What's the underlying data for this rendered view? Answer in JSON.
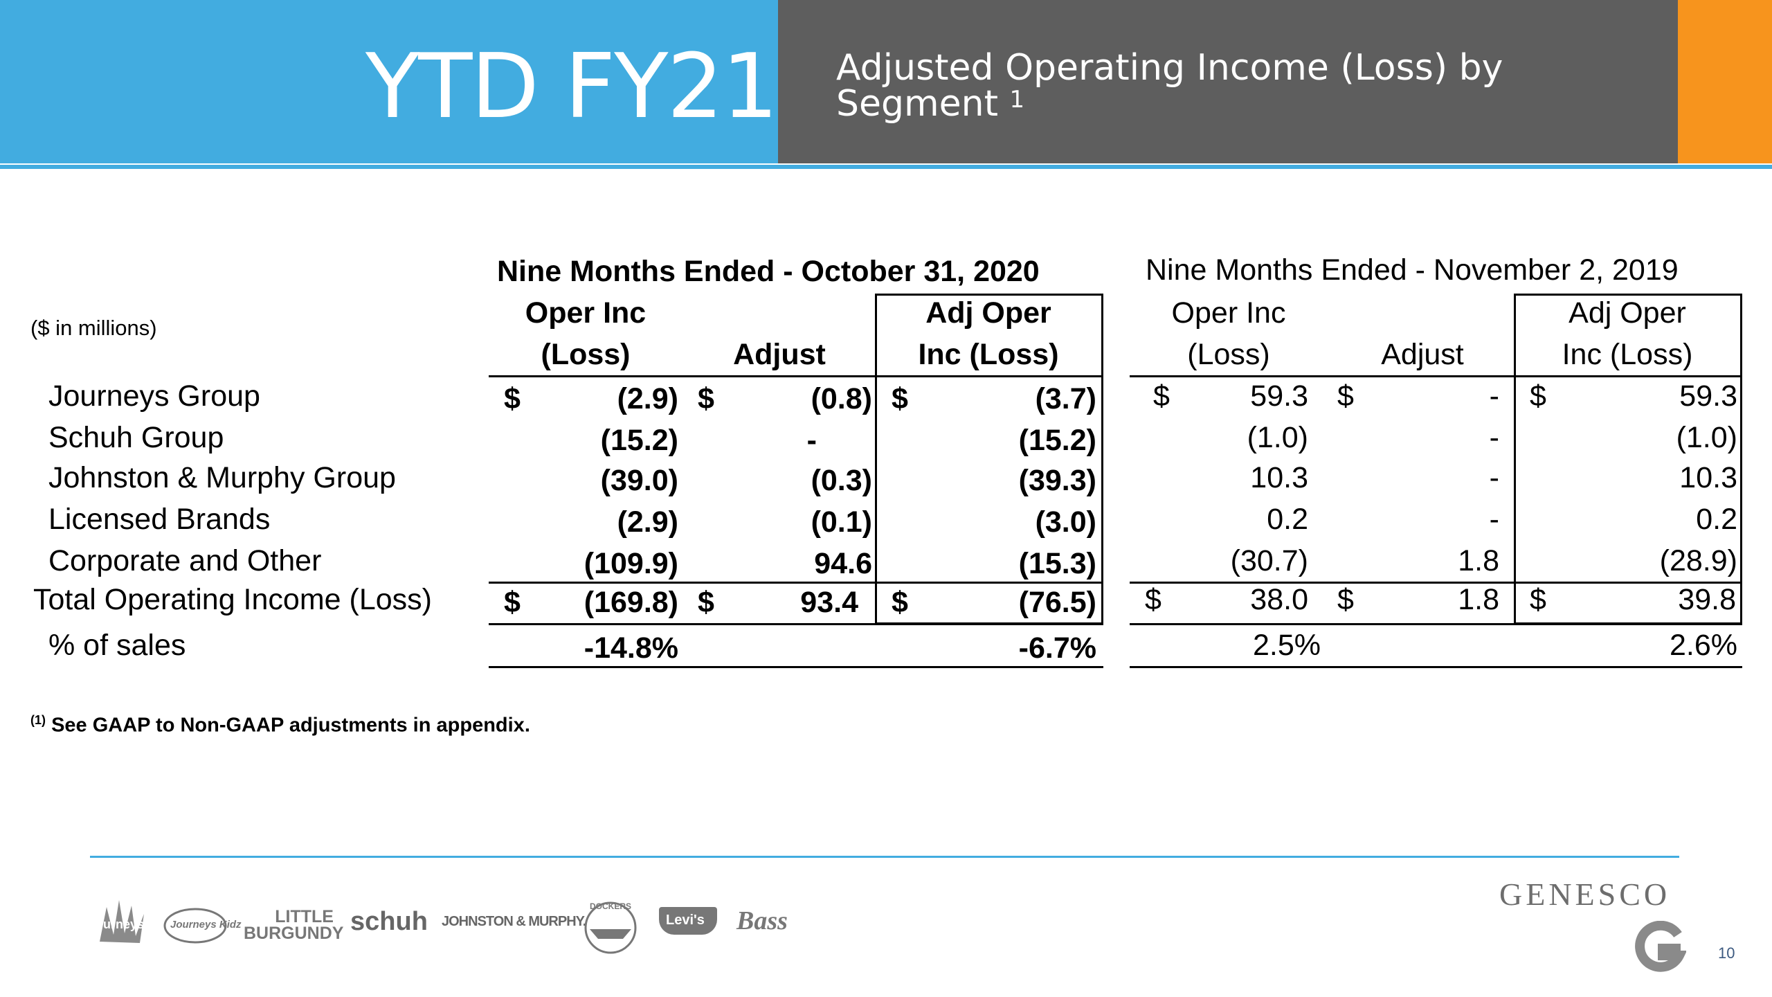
{
  "header": {
    "title": "YTD FY21",
    "subtitle": "Adjusted Operating Income (Loss) by Segment",
    "subtitle_note": "1"
  },
  "units_label": "($ in millions)",
  "periods": {
    "current": "Nine Months Ended - October 31, 2020",
    "prior": "Nine Months Ended - November 2, 2019"
  },
  "columns": {
    "oper_inc_line1": "Oper Inc",
    "oper_inc_line2": "(Loss)",
    "adjust": "Adjust",
    "adj_oper_line1": "Adj Oper",
    "adj_oper_line2": "Inc (Loss)"
  },
  "rows": [
    {
      "label": "Journeys Group",
      "cur_oper": "(2.9)",
      "cur_adj": "(0.8)",
      "cur_adjoper": "(3.7)",
      "pri_oper": "59.3",
      "pri_adj": "-",
      "pri_adjoper": "59.3",
      "dollar": true
    },
    {
      "label": "Schuh Group",
      "cur_oper": "(15.2)",
      "cur_adj": "-",
      "cur_adjoper": "(15.2)",
      "pri_oper": "(1.0)",
      "pri_adj": "-",
      "pri_adjoper": "(1.0)"
    },
    {
      "label": "Johnston & Murphy Group",
      "cur_oper": "(39.0)",
      "cur_adj": "(0.3)",
      "cur_adjoper": "(39.3)",
      "pri_oper": "10.3",
      "pri_adj": "-",
      "pri_adjoper": "10.3"
    },
    {
      "label": "Licensed Brands",
      "cur_oper": "(2.9)",
      "cur_adj": "(0.1)",
      "cur_adjoper": "(3.0)",
      "pri_oper": "0.2",
      "pri_adj": "-",
      "pri_adjoper": "0.2"
    },
    {
      "label": "Corporate and Other",
      "cur_oper": "(109.9)",
      "cur_adj": "94.6",
      "cur_adjoper": "(15.3)",
      "pri_oper": "(30.7)",
      "pri_adj": "1.8",
      "pri_adjoper": "(28.9)"
    }
  ],
  "total": {
    "label": "Total Operating Income (Loss)",
    "cur_oper": "(169.8)",
    "cur_adj": "93.4",
    "cur_adjoper": "(76.5)",
    "pri_oper": "38.0",
    "pri_adj": "1.8",
    "pri_adjoper": "39.8"
  },
  "pct": {
    "label": "% of sales",
    "cur_oper": "-14.8%",
    "cur_adjoper": "-6.7%",
    "pri_oper": "2.5%",
    "pri_adjoper": "2.6%"
  },
  "currency_symbol": "$",
  "footnote_mark": "(1)",
  "footnote": "See GAAP to Non-GAAP adjustments in appendix.",
  "brands": [
    "Journeys",
    "Journeys Kidz",
    "LITTLE BURGUNDY",
    "schuh",
    "JOHNSTON & MURPHY.",
    "DOCKERS",
    "Levi's",
    "Bass"
  ],
  "company": "GENESCO",
  "page_number": "10",
  "colors": {
    "blue": "#42ACE0",
    "gray": "#5E5E5E",
    "orange": "#F7941D"
  }
}
